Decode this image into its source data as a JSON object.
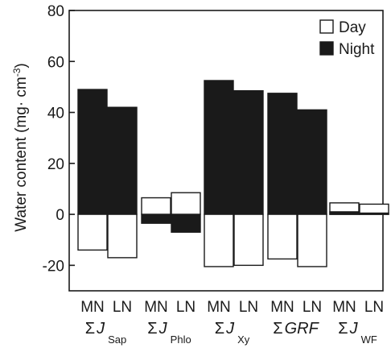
{
  "chart_data": {
    "type": "bar",
    "ylabel": "Water content (mg· cm",
    "ylabel_sup": "-3",
    "ylabel_close": ")",
    "ylim": [
      -30,
      80
    ],
    "yticks": [
      -20,
      0,
      20,
      40,
      60,
      80
    ],
    "grid": false,
    "legend_position": "top-right",
    "legend": [
      {
        "label": "Day",
        "color": "#ffffff"
      },
      {
        "label": "Night",
        "color": "#1a1a1a"
      }
    ],
    "colors": {
      "day": "#ffffff",
      "night": "#1a1a1a",
      "stroke": "#1a1a1a"
    },
    "groups": [
      {
        "sigma": "Σ",
        "name": "J",
        "italic": true,
        "subscript": "Sap",
        "bars": [
          {
            "label": "MN",
            "night": 49,
            "day": -14
          },
          {
            "label": "LN",
            "night": 42,
            "day": -17
          }
        ]
      },
      {
        "sigma": "Σ",
        "name": "J",
        "italic": true,
        "subscript": "Phlo",
        "bars": [
          {
            "label": "MN",
            "night": -3.5,
            "day": 6.5
          },
          {
            "label": "LN",
            "night": -7,
            "day": 8.5
          }
        ]
      },
      {
        "sigma": "Σ",
        "name": "J",
        "italic": true,
        "subscript": "Xy",
        "bars": [
          {
            "label": "MN",
            "night": 52.5,
            "day": -20.5
          },
          {
            "label": "LN",
            "night": 48.5,
            "day": -20
          }
        ]
      },
      {
        "sigma": "Σ",
        "name": "GRF",
        "italic": true,
        "subscript": "",
        "bars": [
          {
            "label": "MN",
            "night": 47.5,
            "day": -17.5
          },
          {
            "label": "LN",
            "night": 41,
            "day": -20.5
          }
        ]
      },
      {
        "sigma": "Σ",
        "name": "J",
        "italic": true,
        "subscript": "WF",
        "bars": [
          {
            "label": "MN",
            "night": 1,
            "day": 4.5
          },
          {
            "label": "LN",
            "night": 0.5,
            "day": 4
          }
        ]
      }
    ]
  }
}
